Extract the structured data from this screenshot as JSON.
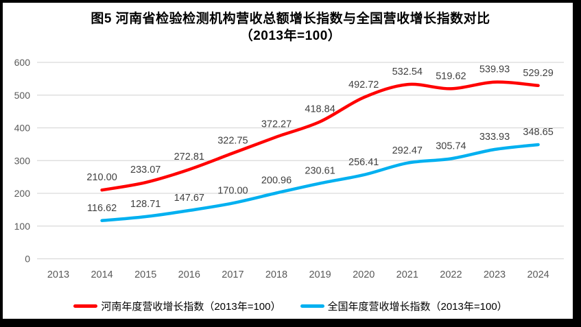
{
  "title": {
    "line1": "图5  河南省检验检测机构营收总额增长指数与全国营收增长指数对比",
    "line2": "（2013年=100）"
  },
  "colors": {
    "henan_line": "#ff0000",
    "national_line": "#00b0f0",
    "gridline": "#d9d9d9",
    "axis_text": "#595959",
    "data_label_text": "#404040"
  },
  "chart_data": {
    "type": "line",
    "title": "图5  河南省检验检测机构营收总额增长指数与全国营收增长指数对比（2013年=100）",
    "categories": [
      "2013",
      "2014",
      "2015",
      "2016",
      "2017",
      "2018",
      "2019",
      "2020",
      "2021",
      "2022",
      "2023",
      "2024"
    ],
    "series": [
      {
        "name": "河南年度营收增长指数（2013年=100）",
        "color": "#ff0000",
        "start_category": "2014",
        "values": [
          210.0,
          233.07,
          272.81,
          322.75,
          372.27,
          418.84,
          492.72,
          532.54,
          519.62,
          539.93,
          529.29
        ]
      },
      {
        "name": "全国年度营收增长指数（2013年=100）",
        "color": "#00b0f0",
        "start_category": "2014",
        "values": [
          116.62,
          128.71,
          147.67,
          170.0,
          200.96,
          230.61,
          256.41,
          292.47,
          305.74,
          333.93,
          348.65
        ]
      }
    ],
    "xlabel": "",
    "ylabel": "",
    "ylim": [
      0,
      600
    ],
    "yticks": [
      0,
      100,
      200,
      300,
      400,
      500,
      600
    ],
    "grid": true,
    "data_labels": true,
    "label_decimals": 2,
    "legend_position": "bottom"
  }
}
